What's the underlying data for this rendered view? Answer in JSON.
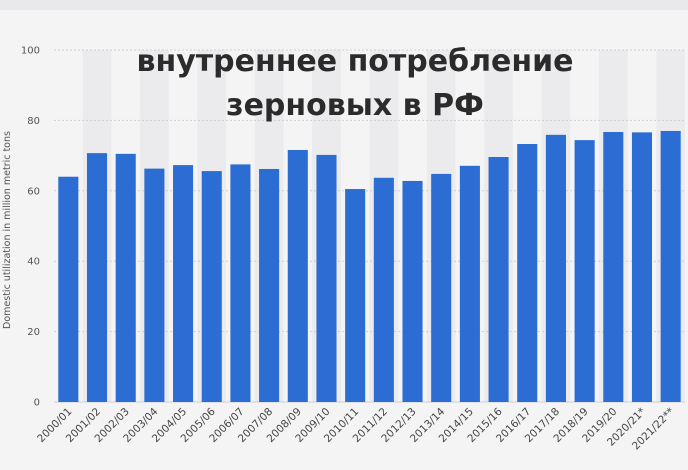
{
  "chart_data": {
    "type": "bar",
    "title_lines": [
      "внутреннее потребление",
      "зерновых в РФ"
    ],
    "ylabel": "Domestic utilization in million metric tons",
    "xlabel": "",
    "ylim": [
      0,
      100
    ],
    "yticks": [
      0,
      20,
      40,
      60,
      80,
      100
    ],
    "grid": true,
    "bar_color": "#2b6dd2",
    "categories": [
      "2000/01",
      "2001/02",
      "2002/03",
      "2003/04",
      "2004/05",
      "2005/06",
      "2006/07",
      "2007/08",
      "2008/09",
      "2009/10",
      "2010/11",
      "2011/12",
      "2012/13",
      "2013/14",
      "2014/15",
      "2015/16",
      "2016/17",
      "2017/18",
      "2018/19",
      "2019/20",
      "2020/21*",
      "2021/22**"
    ],
    "values": [
      64,
      70.7,
      70.5,
      66.3,
      67.3,
      65.6,
      67.5,
      66.2,
      71.6,
      70.2,
      60.5,
      63.7,
      62.8,
      64.8,
      67.1,
      69.6,
      73.3,
      75.9,
      74.4,
      76.7,
      76.6,
      77
    ]
  }
}
